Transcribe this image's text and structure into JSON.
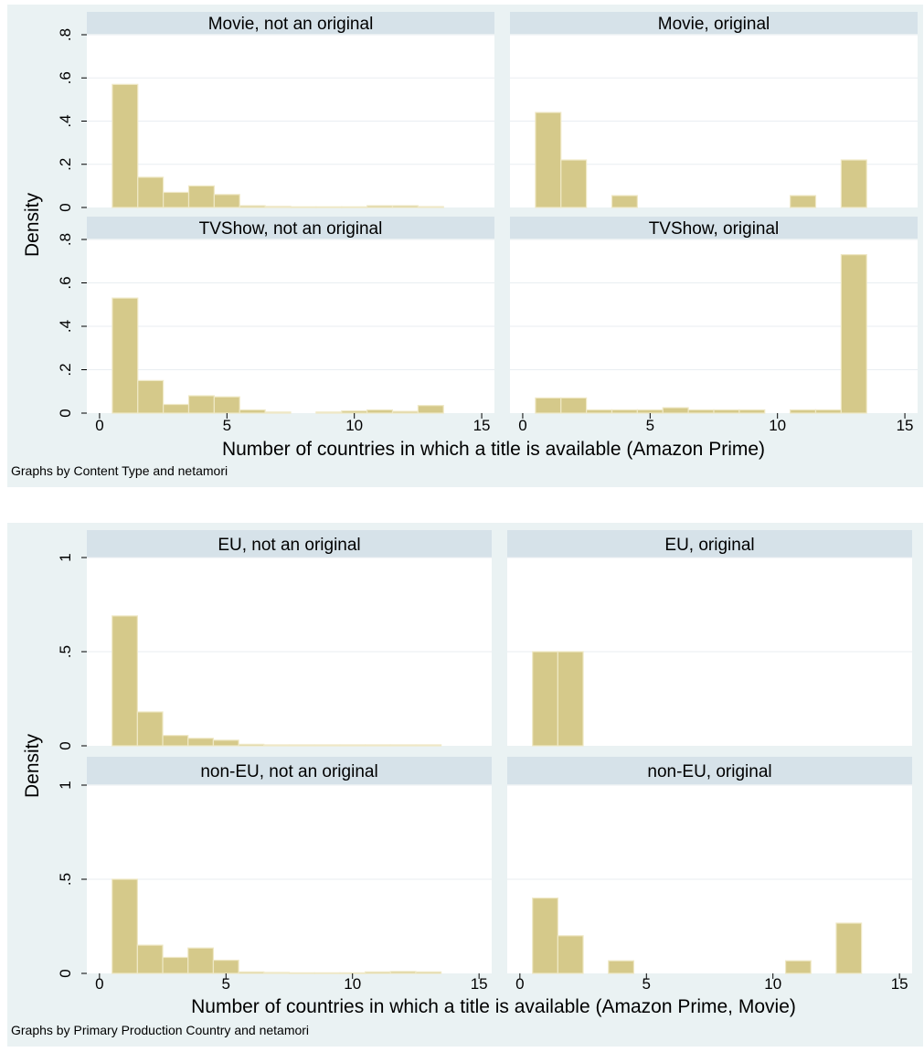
{
  "chart_data": [
    {
      "type": "bar",
      "subtype": "histogram-grid",
      "ylabel": "Density",
      "xlabel": "Number of countries in which a title is available (Amazon Prime)",
      "note": "Graphs by Content Type and netamori",
      "xlim": [
        -0.5,
        15.5
      ],
      "ylim": [
        0,
        0.8
      ],
      "xticks": [
        "0",
        "5",
        "10",
        "15"
      ],
      "yticks": [
        "0",
        ".2",
        ".4",
        ".6",
        ".8"
      ],
      "bin_width": 1,
      "bin_start": 0.5,
      "panels": [
        {
          "title": "Movie, not an original",
          "values": [
            0.57,
            0.14,
            0.07,
            0.1,
            0.06,
            0.008,
            0.005,
            0.003,
            0.003,
            0.003,
            0.008,
            0.008,
            0.004
          ]
        },
        {
          "title": "Movie, original",
          "values": [
            0.44,
            0.22,
            0,
            0.055,
            0,
            0,
            0,
            0,
            0,
            0,
            0.055,
            0,
            0.22
          ]
        },
        {
          "title": "TVShow, not an original",
          "values": [
            0.53,
            0.15,
            0.04,
            0.08,
            0.075,
            0.015,
            0.005,
            0,
            0.005,
            0.01,
            0.015,
            0.008,
            0.035
          ]
        },
        {
          "title": "TVShow, original",
          "values": [
            0.07,
            0.07,
            0.015,
            0.015,
            0.015,
            0.025,
            0.015,
            0.015,
            0.015,
            0,
            0.015,
            0.015,
            0.73
          ]
        }
      ]
    },
    {
      "type": "bar",
      "subtype": "histogram-grid",
      "ylabel": "Density",
      "xlabel": "Number of countries in which a title is available (Amazon Prime, Movie)",
      "note": "Graphs by Primary Production Country and netamori",
      "xlim": [
        -0.5,
        15.5
      ],
      "ylim": [
        0,
        1
      ],
      "xticks": [
        "0",
        "5",
        "10",
        "15"
      ],
      "yticks": [
        "0",
        ".5",
        "1"
      ],
      "bin_width": 1,
      "bin_start": 0.5,
      "panels": [
        {
          "title": "EU, not an original",
          "values": [
            0.69,
            0.18,
            0.055,
            0.04,
            0.03,
            0.008,
            0.005,
            0.005,
            0.005,
            0.005,
            0.005,
            0.005,
            0.005
          ]
        },
        {
          "title": "EU, original",
          "values": [
            0.5,
            0.5,
            0,
            0,
            0,
            0,
            0,
            0,
            0,
            0,
            0,
            0,
            0
          ]
        },
        {
          "title": "non-EU, not an original",
          "values": [
            0.5,
            0.15,
            0.085,
            0.135,
            0.07,
            0.008,
            0.005,
            0.003,
            0.003,
            0.003,
            0.008,
            0.01,
            0.008
          ]
        },
        {
          "title": "non-EU, original",
          "values": [
            0.4,
            0.2,
            0,
            0.067,
            0,
            0,
            0,
            0,
            0,
            0,
            0.067,
            0,
            0.267
          ]
        }
      ]
    }
  ]
}
